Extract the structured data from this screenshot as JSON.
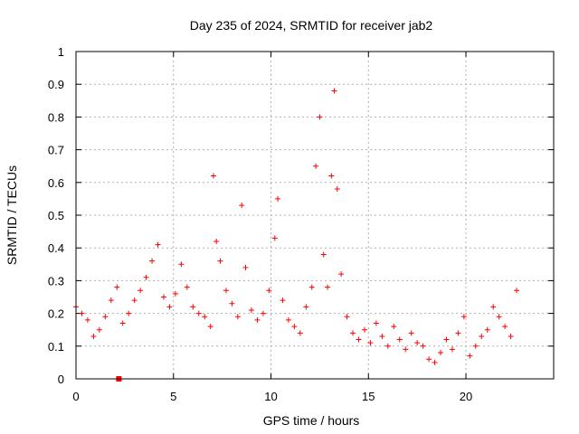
{
  "chart_data": {
    "type": "scatter",
    "title": "Day 235 of 2024, SRMTID for receiver jab2",
    "xlabel": "GPS time / hours",
    "ylabel": "SRMTID / TECUs",
    "xlim": [
      0,
      24.5
    ],
    "ylim": [
      0,
      1
    ],
    "x_ticks": [
      0,
      5,
      10,
      15,
      20
    ],
    "x_tick_labels": [
      "0",
      "5",
      "10",
      "15",
      "20"
    ],
    "y_ticks": [
      0,
      0.1,
      0.2,
      0.3,
      0.4,
      0.5,
      0.6,
      0.7,
      0.8,
      0.9,
      1
    ],
    "y_tick_labels": [
      "0",
      "0.1",
      "0.2",
      "0.3",
      "0.4",
      "0.5",
      "0.6",
      "0.7",
      "0.8",
      "0.9",
      "1"
    ],
    "grid": true,
    "marker": "plus",
    "color": "#ff0000",
    "square_marker": {
      "x": 2.2,
      "y": 0
    },
    "series": [
      {
        "name": "SRMTID",
        "x": [
          0.0,
          0.3,
          0.6,
          0.9,
          1.2,
          1.5,
          1.8,
          2.1,
          2.4,
          2.7,
          3.0,
          3.3,
          3.6,
          3.9,
          4.2,
          4.5,
          4.8,
          5.1,
          5.4,
          5.7,
          6.0,
          6.3,
          6.6,
          6.9,
          7.05,
          7.2,
          7.4,
          7.7,
          8.0,
          8.3,
          8.5,
          8.7,
          9.0,
          9.3,
          9.6,
          9.9,
          10.2,
          10.35,
          10.6,
          10.9,
          11.2,
          11.5,
          11.8,
          12.1,
          12.3,
          12.5,
          12.7,
          12.9,
          13.1,
          13.25,
          13.4,
          13.6,
          13.9,
          14.2,
          14.5,
          14.8,
          15.1,
          15.4,
          15.7,
          16.0,
          16.3,
          16.6,
          16.9,
          17.2,
          17.5,
          17.8,
          18.1,
          18.4,
          18.7,
          19.0,
          19.3,
          19.6,
          19.9,
          20.2,
          20.5,
          20.8,
          21.1,
          21.4,
          21.7,
          22.0,
          22.3,
          22.6
        ],
        "y": [
          0.22,
          0.2,
          0.18,
          0.13,
          0.15,
          0.19,
          0.24,
          0.28,
          0.17,
          0.2,
          0.24,
          0.27,
          0.31,
          0.36,
          0.41,
          0.25,
          0.22,
          0.26,
          0.35,
          0.28,
          0.22,
          0.2,
          0.19,
          0.16,
          0.62,
          0.42,
          0.36,
          0.27,
          0.23,
          0.19,
          0.53,
          0.34,
          0.21,
          0.18,
          0.2,
          0.27,
          0.43,
          0.55,
          0.24,
          0.18,
          0.16,
          0.14,
          0.22,
          0.28,
          0.65,
          0.8,
          0.38,
          0.28,
          0.62,
          0.88,
          0.58,
          0.32,
          0.19,
          0.14,
          0.12,
          0.15,
          0.11,
          0.17,
          0.13,
          0.1,
          0.16,
          0.12,
          0.09,
          0.14,
          0.11,
          0.1,
          0.06,
          0.05,
          0.08,
          0.12,
          0.09,
          0.14,
          0.19,
          0.07,
          0.1,
          0.13,
          0.15,
          0.22,
          0.19,
          0.16,
          0.13,
          0.27
        ]
      }
    ]
  }
}
